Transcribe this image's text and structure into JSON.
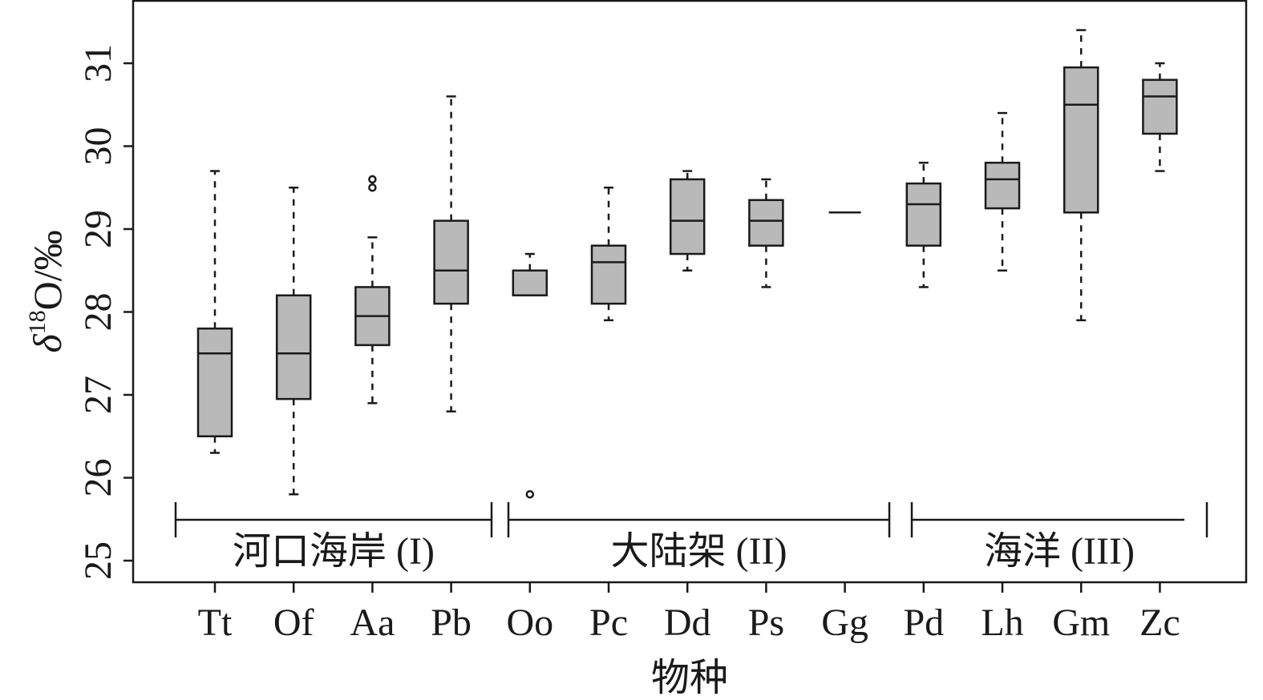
{
  "chart_data": {
    "type": "boxplot",
    "title": "",
    "xlabel": "物种",
    "ylabel": "δ18O/‰",
    "ylabel_parts": {
      "delta": "δ",
      "superscript": "18",
      "rest": "O/‰"
    },
    "ylim": [
      25,
      31.6
    ],
    "yticks": [
      25,
      26,
      27,
      28,
      29,
      30,
      31
    ],
    "grid": false,
    "legend": "none",
    "box_fill": "#b9b9b9",
    "stroke_color": "#1a1a1a",
    "categories": [
      "Tt",
      "Of",
      "Aa",
      "Pb",
      "Oo",
      "Pc",
      "Dd",
      "Ps",
      "Gg",
      "Pd",
      "Lh",
      "Gm",
      "Zc"
    ],
    "boxes": [
      {
        "category": "Tt",
        "min": 26.3,
        "q1": 26.5,
        "median": 27.5,
        "q3": 27.8,
        "max": 29.7,
        "outliers": []
      },
      {
        "category": "Of",
        "min": 25.8,
        "q1": 26.95,
        "median": 27.5,
        "q3": 28.2,
        "max": 29.5,
        "outliers": []
      },
      {
        "category": "Aa",
        "min": 26.9,
        "q1": 27.6,
        "median": 27.95,
        "q3": 28.3,
        "max": 28.9,
        "outliers": [
          29.5,
          29.6
        ]
      },
      {
        "category": "Pb",
        "min": 26.8,
        "q1": 28.1,
        "median": 28.5,
        "q3": 29.1,
        "max": 30.6,
        "outliers": []
      },
      {
        "category": "Oo",
        "min": 28.2,
        "q1": 28.2,
        "median": 28.2,
        "q3": 28.5,
        "max": 28.7,
        "outliers": [
          25.8
        ]
      },
      {
        "category": "Pc",
        "min": 27.9,
        "q1": 28.1,
        "median": 28.6,
        "q3": 28.8,
        "max": 29.5,
        "outliers": []
      },
      {
        "category": "Dd",
        "min": 28.5,
        "q1": 28.7,
        "median": 29.1,
        "q3": 29.6,
        "max": 29.7,
        "outliers": []
      },
      {
        "category": "Ps",
        "min": 28.3,
        "q1": 28.8,
        "median": 29.1,
        "q3": 29.35,
        "max": 29.6,
        "outliers": []
      },
      {
        "category": "Gg",
        "min": 29.2,
        "q1": 29.2,
        "median": 29.2,
        "q3": 29.2,
        "max": 29.2,
        "outliers": []
      },
      {
        "category": "Pd",
        "min": 28.3,
        "q1": 28.8,
        "median": 29.3,
        "q3": 29.55,
        "max": 29.8,
        "outliers": []
      },
      {
        "category": "Lh",
        "min": 28.5,
        "q1": 29.25,
        "median": 29.6,
        "q3": 29.8,
        "max": 30.4,
        "outliers": []
      },
      {
        "category": "Gm",
        "min": 27.9,
        "q1": 29.2,
        "median": 30.5,
        "q3": 30.95,
        "max": 31.4,
        "outliers": []
      },
      {
        "category": "Zc",
        "min": 29.7,
        "q1": 30.15,
        "median": 30.6,
        "q3": 30.8,
        "max": 31.0,
        "outliers": []
      }
    ],
    "groups": [
      {
        "label": "河口海岸 (I)",
        "categories": [
          "Tt",
          "Of",
          "Aa",
          "Pb"
        ]
      },
      {
        "label": "大陆架 (II)",
        "categories": [
          "Oo",
          "Pc",
          "Dd",
          "Ps",
          "Gg"
        ]
      },
      {
        "label": "海洋 (III)",
        "categories": [
          "Pd",
          "Lh",
          "Gm",
          "Zc"
        ]
      }
    ]
  }
}
